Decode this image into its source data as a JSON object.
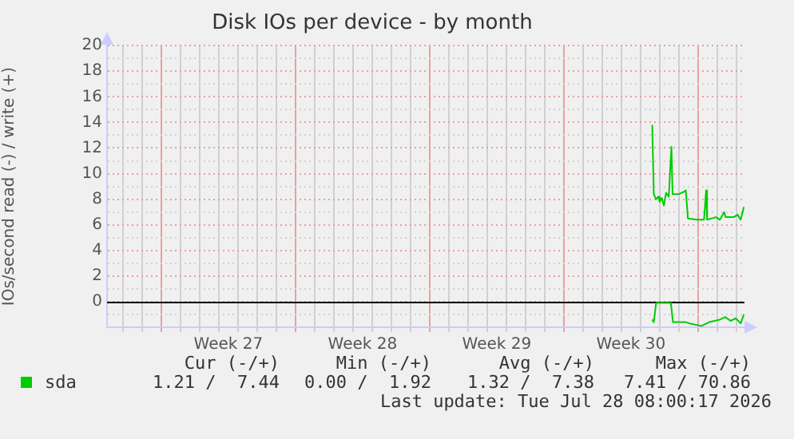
{
  "chart_data": {
    "type": "line",
    "title": "Disk IOs per device - by month",
    "ylabel": "IOs/second read (-) / write (+)",
    "xlim": [
      "2026-06-26T04:05",
      "2026-07-29T10:05"
    ],
    "xticks": [
      {
        "value": "2026-06-27",
        "label": null
      },
      {
        "value": "2026-06-28",
        "label": null
      },
      {
        "value": "2026-06-29",
        "label": null
      },
      {
        "value": "2026-06-30",
        "label": null
      },
      {
        "value": "2026-07-01",
        "label": null
      },
      {
        "value": "2026-07-02",
        "label": null
      },
      {
        "value": "2026-07-02T12:00",
        "label": "Week 27"
      },
      {
        "value": "2026-07-03",
        "label": null
      },
      {
        "value": "2026-07-04",
        "label": null
      },
      {
        "value": "2026-07-05",
        "label": null
      },
      {
        "value": "2026-07-06",
        "label": null
      },
      {
        "value": "2026-07-07",
        "label": null
      },
      {
        "value": "2026-07-08",
        "label": null
      },
      {
        "value": "2026-07-09",
        "label": null
      },
      {
        "value": "2026-07-09T12:00",
        "label": "Week 28"
      },
      {
        "value": "2026-07-10",
        "label": null
      },
      {
        "value": "2026-07-11",
        "label": null
      },
      {
        "value": "2026-07-12",
        "label": null
      },
      {
        "value": "2026-07-13",
        "label": null
      },
      {
        "value": "2026-07-14",
        "label": null
      },
      {
        "value": "2026-07-15",
        "label": null
      },
      {
        "value": "2026-07-16",
        "label": null
      },
      {
        "value": "2026-07-16T12:00",
        "label": "Week 29"
      },
      {
        "value": "2026-07-17",
        "label": null
      },
      {
        "value": "2026-07-18",
        "label": null
      },
      {
        "value": "2026-07-19",
        "label": null
      },
      {
        "value": "2026-07-20",
        "label": null
      },
      {
        "value": "2026-07-21",
        "label": null
      },
      {
        "value": "2026-07-22",
        "label": null
      },
      {
        "value": "2026-07-23",
        "label": null
      },
      {
        "value": "2026-07-23T12:00",
        "label": "Week 30"
      },
      {
        "value": "2026-07-24",
        "label": null
      },
      {
        "value": "2026-07-25",
        "label": null
      },
      {
        "value": "2026-07-26",
        "label": null
      },
      {
        "value": "2026-07-27",
        "label": null
      },
      {
        "value": "2026-07-28",
        "label": null
      },
      {
        "value": "2026-07-29",
        "label": null
      }
    ],
    "ylim": [
      -2,
      20
    ],
    "yticks": [
      {
        "value": -1,
        "label": null
      },
      0,
      {
        "value": 1,
        "label": null
      },
      2,
      {
        "value": 3,
        "label": null
      },
      4,
      {
        "value": 5,
        "label": null
      },
      6,
      {
        "value": 7,
        "label": null
      },
      8,
      {
        "value": 9,
        "label": null
      },
      10,
      {
        "value": 11,
        "label": null
      },
      12,
      {
        "value": 13,
        "label": null
      },
      14,
      {
        "value": 15,
        "label": null
      },
      16,
      {
        "value": 17,
        "label": null
      },
      18,
      {
        "value": 19,
        "label": null
      },
      20
    ],
    "grid": true,
    "legend": "bottom",
    "ref_lines": [
      {
        "axis": "y",
        "value": 0,
        "color": "#000000"
      }
    ],
    "series": [
      {
        "name": "sda",
        "color": "#00cc00",
        "x": [
          "2026-07-24T14:38",
          "2026-07-24T16:34",
          "2026-07-24T19:26",
          "2026-07-24T22:05",
          "2026-07-25T00:00",
          "2026-07-25T02:38",
          "2026-07-25T05:17",
          "2026-07-25T07:55",
          "2026-07-25T11:17",
          "2026-07-25T14:38",
          "2026-07-25T16:05",
          "2026-07-26T00:00",
          "2026-07-26T06:43",
          "2026-07-26T08:38",
          "2026-07-26T11:17",
          "2026-07-26T23:17",
          "2026-07-27T07:26",
          "2026-07-27T10:05",
          "2026-07-27T11:17",
          "2026-07-27T22:34",
          "2026-07-28T03:22",
          "2026-07-28T08:38",
          "2026-07-28T10:34",
          "2026-07-28T20:38",
          "2026-07-29T01:26",
          "2026-07-29T05:17",
          "2026-07-29T09:22"
        ],
        "values": [
          13.8,
          8.4,
          8.0,
          8.2,
          7.8,
          8.1,
          7.5,
          8.5,
          8.2,
          12.1,
          8.4,
          8.4,
          8.6,
          8.7,
          6.5,
          6.4,
          6.4,
          8.7,
          6.4,
          6.6,
          6.4,
          7.0,
          6.6,
          6.6,
          6.8,
          6.4,
          7.4
        ]
      },
      {
        "color": "#00cc00",
        "x": [
          "2026-07-24T14:38",
          "2026-07-24T16:34",
          "2026-07-24T19:26",
          "2026-07-24T23:17",
          "2026-07-25T13:55",
          "2026-07-25T16:34",
          "2026-07-26T08:38",
          "2026-07-26T13:26",
          "2026-07-27T04:05",
          "2026-07-27T13:55",
          "2026-07-27T20:38",
          "2026-07-28T03:22",
          "2026-07-28T10:05",
          "2026-07-28T16:34",
          "2026-07-28T23:17",
          "2026-07-29T05:17",
          "2026-07-29T09:22"
        ],
        "values": [
          -1.4,
          -1.6,
          -0.1,
          -0.1,
          -0.1,
          -1.6,
          -1.6,
          -1.7,
          -1.9,
          -1.6,
          -1.5,
          -1.4,
          -1.2,
          -1.5,
          -1.3,
          -1.7,
          -1.0
        ]
      }
    ],
    "annotations": [
      "Cur (-/+)",
      "Min (-/+)",
      "Avg (-/+)",
      "Max (-/+)",
      "1.21 /  7.44",
      "0.00 /  1.92",
      "1.32 /  7.38",
      "7.41 / 70.86",
      "Last update: Tue Jul 28 08:00:17 2026"
    ]
  }
}
